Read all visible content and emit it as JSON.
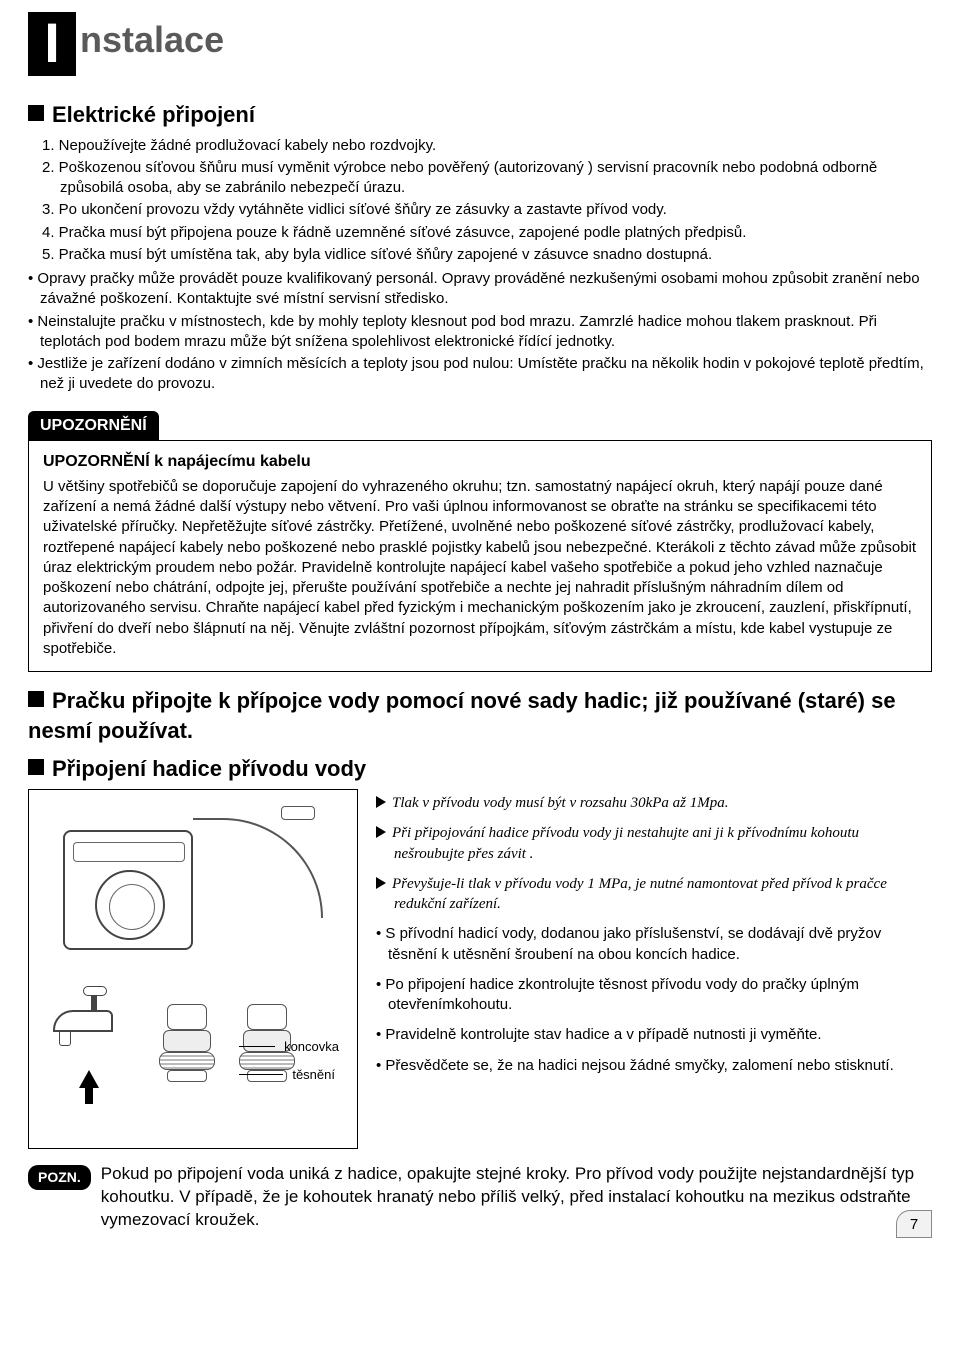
{
  "title": {
    "first_letter": "I",
    "rest": "nstalace"
  },
  "section1": {
    "heading": "Elektrické připojení",
    "items": [
      "1. Nepoužívejte žádné prodlužovací kabely nebo rozdvojky.",
      "2. Poškozenou síťovou šňůru musí vyměnit výrobce nebo pověřený (autorizovaný ) servisní pracovník nebo podobná odborně způsobilá osoba, aby se zabránilo nebezpečí úrazu.",
      "3. Po ukončení provozu vždy vytáhněte vidlici síťové šňůry ze zásuvky a zastavte přívod vody.",
      "4. Pračka musí být připojena pouze k řádně uzemněné síťové zásuvce, zapojené podle platných předpisů.",
      "5. Pračka musí být umístěna tak, aby  byla vidlice síťové šňůry zapojené v zásuvce  snadno dostupná."
    ],
    "bullets": [
      "• Opravy pračky může provádět pouze kvalifikovaný personál. Opravy prováděné nezkušenými osobami mohou způsobit zranění nebo závažné poškození. Kontaktujte své místní servisní středisko.",
      "• Neinstalujte pračku v místnostech, kde by mohly teploty klesnout pod bod mrazu. Zamrzlé hadice mohou tlakem prasknout. Při teplotách pod bodem mrazu může být snížena spolehlivost elektronické řídící jednotky.",
      "• Jestliže je zařízení dodáno v zimních měsících a teploty jsou pod nulou: Umístěte pračku na několik hodin v pokojové teplotě předtím, než ji uvedete do provozu."
    ]
  },
  "warning": {
    "tab": "UPOZORNĚNÍ",
    "subtitle": "UPOZORNĚNÍ k napájecímu kabelu",
    "body": "U většiny spotřebičů se doporučuje zapojení do vyhrazeného okruhu; tzn. samostatný napájecí okruh, který napájí pouze dané zařízení a nemá žádné další výstupy nebo větvení. Pro vaši úplnou informovanost se obraťte na stránku se specifikacemi této uživatelské příručky. Nepřetěžujte síťové zástrčky. Přetížené, uvolněné nebo poškozené síťové zástrčky, prodlužovací kabely, roztřepené napájecí kabely nebo poškozené nebo prasklé pojistky kabelů jsou nebezpečné. Kterákoli z těchto závad může způsobit úraz elektrickým proudem nebo požár. Pravidelně kontrolujte napájecí kabel vašeho spotřebiče a pokud jeho vzhled naznačuje poškození nebo chátrání, odpojte jej, přerušte používání spotřebiče a nechte jej nahradit příslušným náhradním dílem od autorizovaného servisu. Chraňte napájecí kabel před fyzickým i mechanickým poškozením jako je zkroucení, zauzlení, přiskřípnutí, přivření do dveří nebo šlápnutí na něj. Věnujte zvláštní pozornost přípojkám, síťovým zástrčkám a místu, kde kabel vystupuje ze spotřebiče."
  },
  "section2": {
    "heading": "Pračku připojte k přípojce vody  pomocí nové sady hadic; již používané (staré) se nesmí používat.",
    "heading2": "Připojení hadice přívodu vody",
    "diagram_labels": {
      "koncovka": "koncovka",
      "tesneni": "těsnění"
    },
    "tri_items": [
      "Tlak v přívodu vody musí být v rozsahu 30kPa až 1Mpa.",
      "Při připojování hadice přívodu vody ji nestahujte  ani ji k přívodnímu kohoutu nešroubujte přes závit .",
      "Převyšuje-li tlak v přívodu vody 1 MPa, je nutné namontovat před přívod k pračce redukční  zařízení."
    ],
    "dot_items": [
      "• S přívodní hadicí  vody, dodanou jako  příslušenství,  se dodávají dvě pryžov těsnění k utěsnění šroubení na obou koncích hadice.",
      "• Po připojení hadice zkontrolujte těsnost přívodu vody do pračky úplným otevřenímkohoutu.",
      "• Pravidelně kontrolujte stav hadice a v případě nutnosti ji vyměňte.",
      "• Přesvědčete se, že na hadici nejsou žádné smyčky, zalomení nebo stisknutí."
    ]
  },
  "note": {
    "tab": "POZN.",
    "text": "Pokud po připojení voda uniká z hadice, opakujte stejné kroky. Pro přívod vody použijte nejstandardnější typ kohoutku. V případě, že je kohoutek hranatý nebo příliš velký, před instalací kohoutku na mezikus odstraňte vymezovací kroužek."
  },
  "page_number": "7"
}
